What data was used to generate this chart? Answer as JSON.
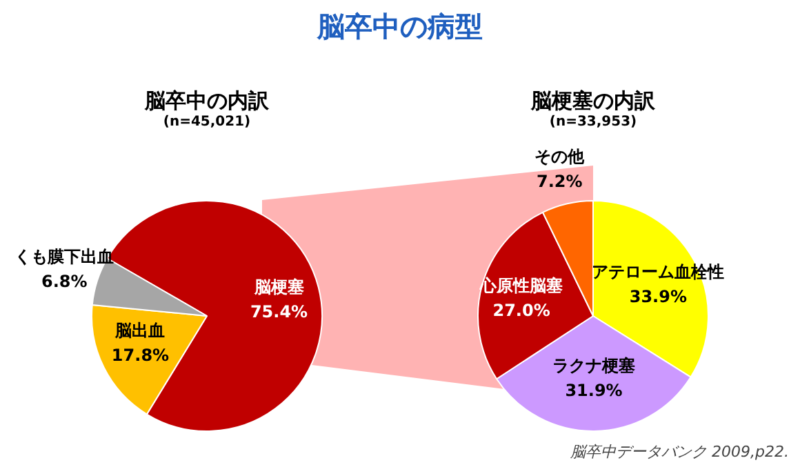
{
  "chart_data": [
    {
      "type": "pie",
      "title": "脳卒中の内訳",
      "subtitle": "(n=45,021)",
      "annotations": [
        "脳卒中の病型"
      ],
      "categories": [
        "脳梗塞",
        "脳出血",
        "くも膜下出血"
      ],
      "values": [
        75.4,
        17.8,
        6.8
      ],
      "value_labels": [
        "75.4%",
        "17.8%",
        "6.8%"
      ],
      "colors": [
        "#c00000",
        "#ffc000",
        "#a6a6a6"
      ],
      "legend": false
    },
    {
      "type": "pie",
      "title": "脳梗塞の内訳",
      "subtitle": "(n=33,953)",
      "annotations": [
        "脳卒中データバンク 2009,p22."
      ],
      "categories": [
        "アテローム血栓性",
        "ラクナ梗塞",
        "心原性脳塞",
        "その他"
      ],
      "values": [
        33.9,
        31.9,
        27.0,
        7.2
      ],
      "value_labels": [
        "33.9%",
        "31.9%",
        "27.0%",
        "7.2%"
      ],
      "colors": [
        "#ffff00",
        "#cc99ff",
        "#c00000",
        "#ff6600"
      ],
      "legend": false
    }
  ]
}
